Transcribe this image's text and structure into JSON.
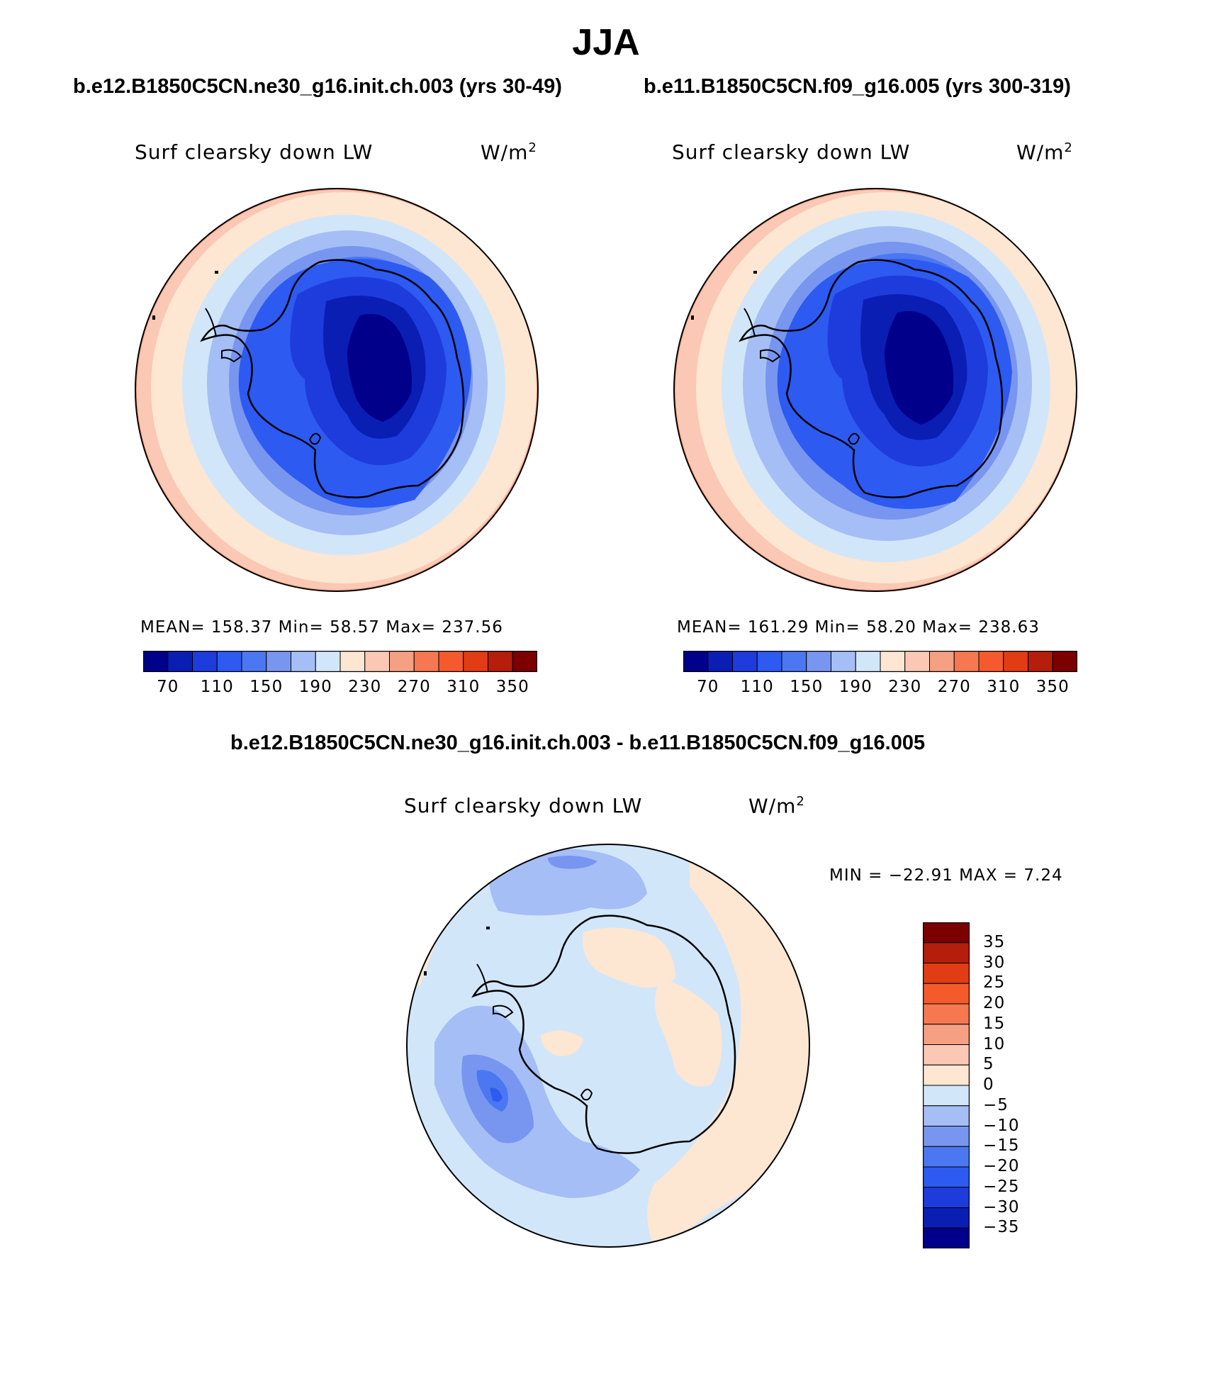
{
  "figure": {
    "title": "JJA",
    "case_a_title": "b.e12.B1850C5CN.ne30_g16.init.ch.003 (yrs 30-49)",
    "case_b_title": "b.e11.B1850C5CN.f09_g16.005 (yrs 300-319)",
    "diff_title": "b.e12.B1850C5CN.ne30_g16.init.ch.003 - b.e11.B1850C5CN.f09_g16.005"
  },
  "panels": [
    {
      "variable": "Surf clearsky down LW",
      "units": "W/m",
      "units_exp": "2",
      "stats": "MEAN= 158.37   Min=   58.57   Max= 237.56"
    },
    {
      "variable": "Surf clearsky down LW",
      "units": "W/m",
      "units_exp": "2",
      "stats": "MEAN= 161.29   Min=   58.20   Max= 238.63"
    },
    {
      "variable": "Surf clearsky down LW",
      "units": "W/m",
      "units_exp": "2",
      "stats": "MIN = −22.91  MAX =    7.24"
    }
  ],
  "colorbar_main": {
    "ticks": [
      "70",
      "110",
      "150",
      "190",
      "230",
      "270",
      "310",
      "350"
    ],
    "colors": [
      "#00008b",
      "#0a1eb4",
      "#1e3cdc",
      "#2d5af0",
      "#4b78f0",
      "#7896f0",
      "#a5bef5",
      "#d2e6fa",
      "#fde6d2",
      "#fac8b4",
      "#f5a082",
      "#f57850",
      "#f55a2d",
      "#e13c14",
      "#b41e0a",
      "#7d0000"
    ]
  },
  "colorbar_diff": {
    "labels": [
      "35",
      "30",
      "25",
      "20",
      "15",
      "10",
      "5",
      "0",
      "−5",
      "−10",
      "−15",
      "−20",
      "−25",
      "−30",
      "−35"
    ],
    "colors": [
      "#7d0000",
      "#b41e0a",
      "#e13c14",
      "#f55a2d",
      "#f57850",
      "#f5a082",
      "#fac8b4",
      "#fde6d2",
      "#d2e6fa",
      "#a5bef5",
      "#7896f0",
      "#4b78f0",
      "#2d5af0",
      "#1e3cdc",
      "#0a1eb4",
      "#00008b"
    ]
  }
}
